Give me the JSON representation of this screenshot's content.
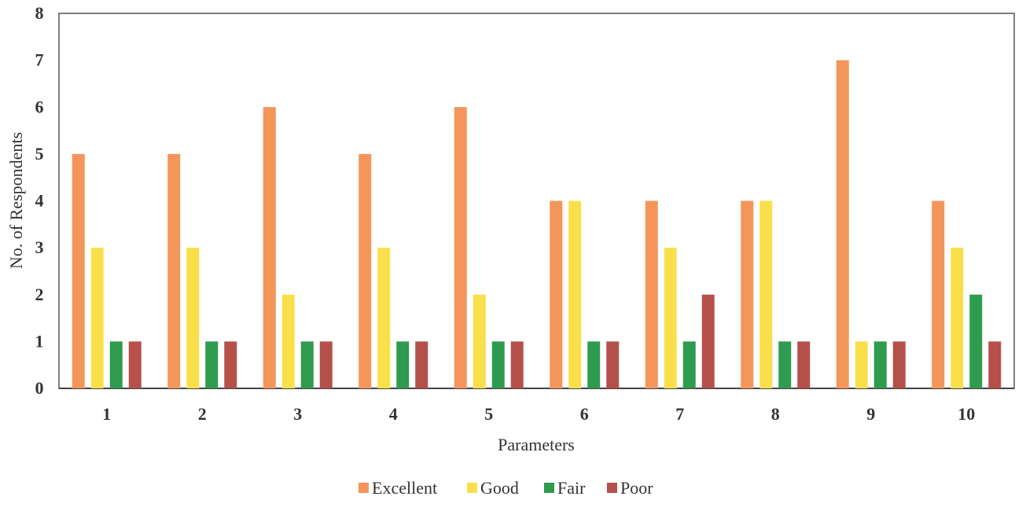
{
  "chart_data": {
    "type": "bar",
    "xlabel": "Parameters",
    "ylabel": "No. of Respondents",
    "ylim": [
      0,
      8
    ],
    "yticks": [
      "0",
      "1",
      "2",
      "3",
      "4",
      "5",
      "6",
      "7",
      "8"
    ],
    "categories": [
      "1",
      "2",
      "3",
      "4",
      "5",
      "6",
      "7",
      "8",
      "9",
      "10"
    ],
    "series": [
      {
        "name": "Excellent",
        "color": "#F4955A",
        "values": [
          5,
          5,
          6,
          5,
          6,
          4,
          4,
          4,
          7,
          4
        ]
      },
      {
        "name": "Good",
        "color": "#F9E04B",
        "values": [
          3,
          3,
          2,
          3,
          2,
          4,
          3,
          4,
          1,
          3
        ]
      },
      {
        "name": "Fair",
        "color": "#2E9B4E",
        "values": [
          1,
          1,
          1,
          1,
          1,
          1,
          1,
          1,
          1,
          2
        ]
      },
      {
        "name": "Poor",
        "color": "#B5504B",
        "values": [
          1,
          1,
          1,
          1,
          1,
          1,
          2,
          1,
          1,
          1
        ]
      }
    ],
    "grid": false,
    "legend_position": "bottom"
  }
}
